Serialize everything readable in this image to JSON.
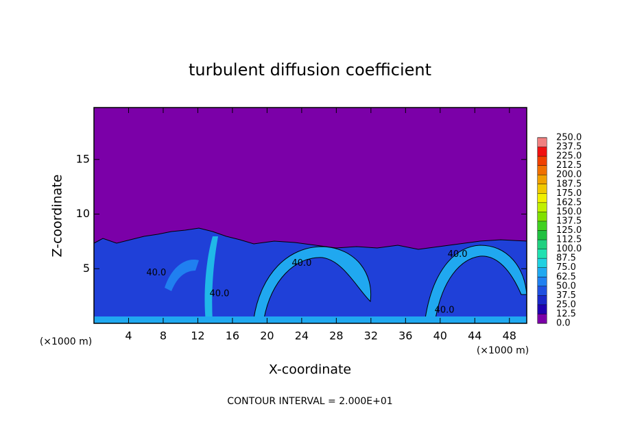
{
  "chart_data": {
    "type": "contour",
    "title": "turbulent diffusion coefficient",
    "xlabel": "X-coordinate",
    "ylabel": "Z-coordinate",
    "x_unit": "(×1000 m)",
    "x_unit_right": "(×1000 m)",
    "footer": "CONTOUR INTERVAL = 2.000E+01",
    "xlim": [
      0,
      50
    ],
    "ylim": [
      0,
      19.75
    ],
    "xticks": [
      4,
      8,
      12,
      16,
      20,
      24,
      28,
      32,
      36,
      40,
      44,
      48
    ],
    "yticks": [
      5,
      10,
      15
    ],
    "levels": [
      {
        "value": 0,
        "label": "0.0"
      },
      12.5,
      {
        "value": 25,
        "label": "25.0"
      },
      37.5,
      {
        "value": 50,
        "label": "50.0"
      },
      62.5,
      {
        "value": 75,
        "label": "75.0"
      },
      87.5,
      {
        "value": 100,
        "label": "100.0"
      },
      112.5,
      {
        "value": 125,
        "label": "125.0"
      },
      137.5,
      {
        "value": 150,
        "label": "150.0"
      },
      162.5,
      {
        "value": 175,
        "label": "175.0"
      },
      187.5,
      {
        "value": 200,
        "label": "200.0"
      },
      212.5,
      {
        "value": 225,
        "label": "225.0"
      },
      237.5,
      {
        "value": 250,
        "label": "250.0"
      }
    ],
    "level_colors": [
      "#7b00a8",
      "#2000b0",
      "#1a28c8",
      "#1f50e0",
      "#2080f0",
      "#20a8f0",
      "#20d0e0",
      "#20e0b0",
      "#20d080",
      "#20c040",
      "#40d020",
      "#80e000",
      "#c0f000",
      "#f0f000",
      "#f0c800",
      "#f0a000",
      "#f07000",
      "#f04000",
      "#f01010",
      "#f08080"
    ],
    "contour_labels": [
      {
        "text": "40.0",
        "x": 7.2,
        "y": 4.6
      },
      {
        "text": "40.0",
        "x": 24.0,
        "y": 5.5
      },
      {
        "text": "40.0",
        "x": 42.0,
        "y": 6.3
      },
      {
        "text": "40.0",
        "x": 40.5,
        "y": 1.2
      },
      {
        "text": "40.0",
        "x": 14.5,
        "y": 2.7
      }
    ]
  }
}
